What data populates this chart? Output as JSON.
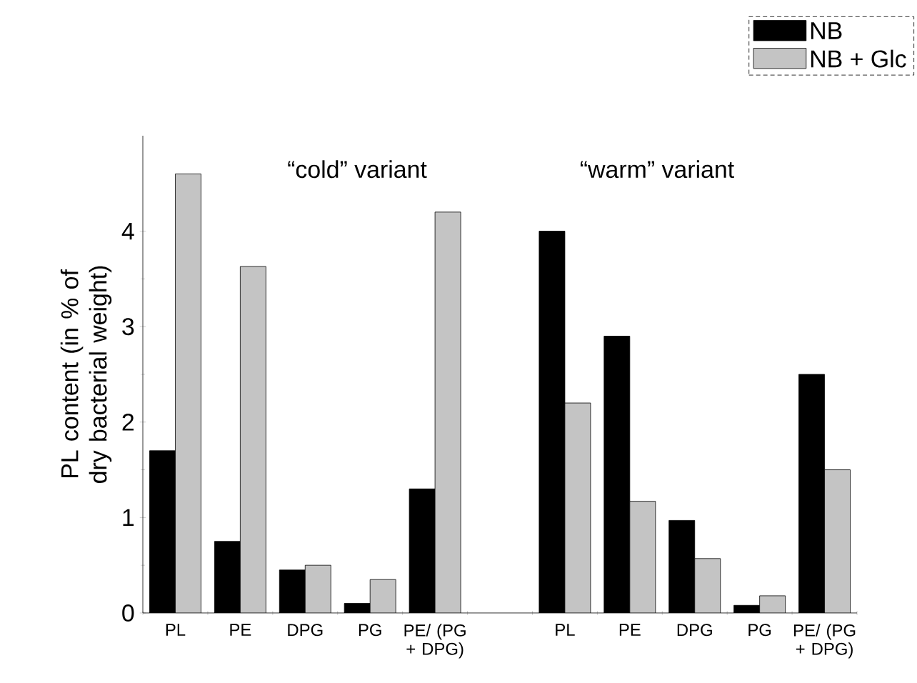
{
  "chart_data": {
    "type": "bar",
    "ylabel": "PL content (in % of dry bacterial weight)",
    "categories": [
      "PL",
      "PE",
      "DPG",
      "PG",
      "PE/ (PG + DPG)",
      null,
      "PL",
      "PE",
      "DPG",
      "PG",
      "PE/ (PG + DPG)"
    ],
    "series": [
      {
        "name": "NB",
        "color": "#000000",
        "values": [
          1.7,
          0.75,
          0.45,
          0.1,
          1.3,
          null,
          4.0,
          2.9,
          0.97,
          0.08,
          2.5
        ]
      },
      {
        "name": "NB + Glc",
        "color": "#c4c4c4",
        "values": [
          4.6,
          3.63,
          0.5,
          0.35,
          4.2,
          null,
          2.2,
          1.17,
          0.57,
          0.18,
          1.5
        ]
      }
    ],
    "ylim": [
      0,
      5
    ],
    "yticks": [
      0,
      1,
      2,
      3,
      4
    ],
    "legend": "top right",
    "annotations": [
      "“cold” variant",
      "“warm” variant"
    ]
  }
}
